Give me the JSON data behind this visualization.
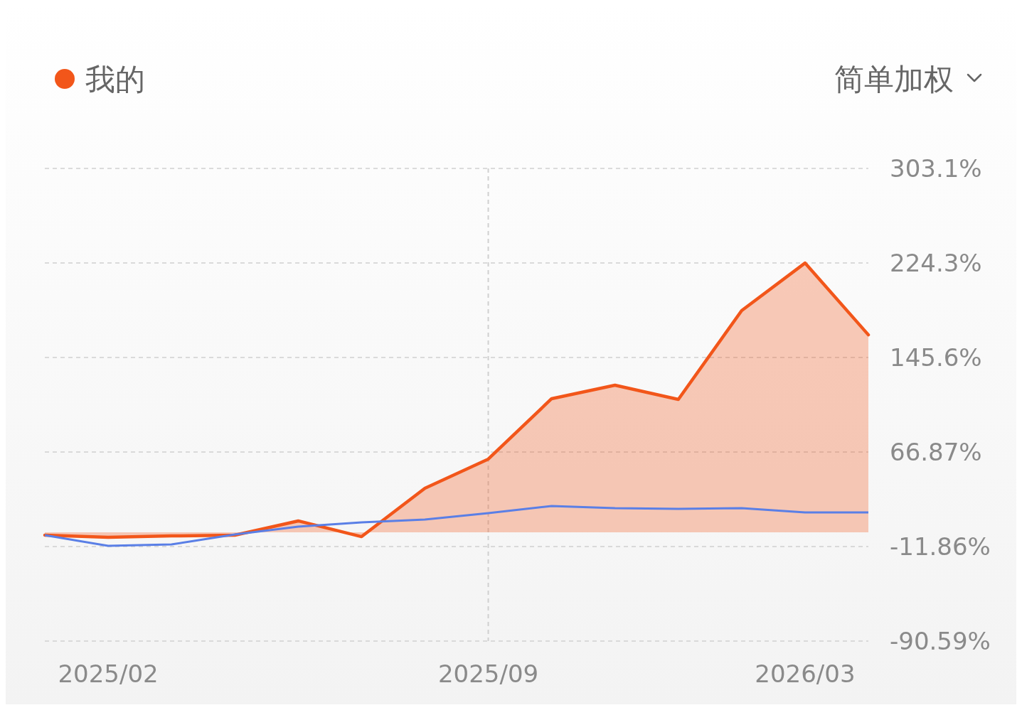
{
  "chart_data": {
    "type": "line",
    "categories": [
      null,
      "2025/02",
      null,
      null,
      null,
      null,
      null,
      "2025/09",
      null,
      null,
      null,
      null,
      "2026/03",
      null
    ],
    "series": [
      {
        "name": "我的",
        "type": "area",
        "color": "#f2561a",
        "values": [
          -2.4,
          -4.2,
          -3.0,
          -2.4,
          9.5,
          -3.6,
          36.7,
          61.0,
          111.3,
          122.5,
          110.7,
          184.7,
          224.3,
          164.5
        ]
      },
      {
        "color": "#5a7fe6",
        "values": [
          -2.4,
          -11.3,
          -10.1,
          -1.8,
          4.7,
          8.3,
          10.6,
          16.0,
          21.9,
          20.1,
          19.5,
          20.1,
          16.6,
          16.6
        ]
      }
    ],
    "ylim": [
      -90.59,
      303.1
    ],
    "yticks": [
      {
        "value": -90.59,
        "label": "-90.59%"
      },
      {
        "value": -11.86,
        "label": "-11.86%"
      },
      {
        "value": 66.87,
        "label": "66.87%"
      },
      {
        "value": 145.6,
        "label": "145.6%"
      },
      {
        "value": 224.3,
        "label": "224.3%"
      },
      {
        "value": 303.1,
        "label": "303.1%"
      }
    ],
    "grid": "y",
    "legend": "top left",
    "ref_lines": [
      {
        "axis": "x",
        "value": "2025/09",
        "color": "#d0d0d0",
        "line_style": "dashed"
      }
    ],
    "annotations": [
      "简单加权"
    ]
  }
}
